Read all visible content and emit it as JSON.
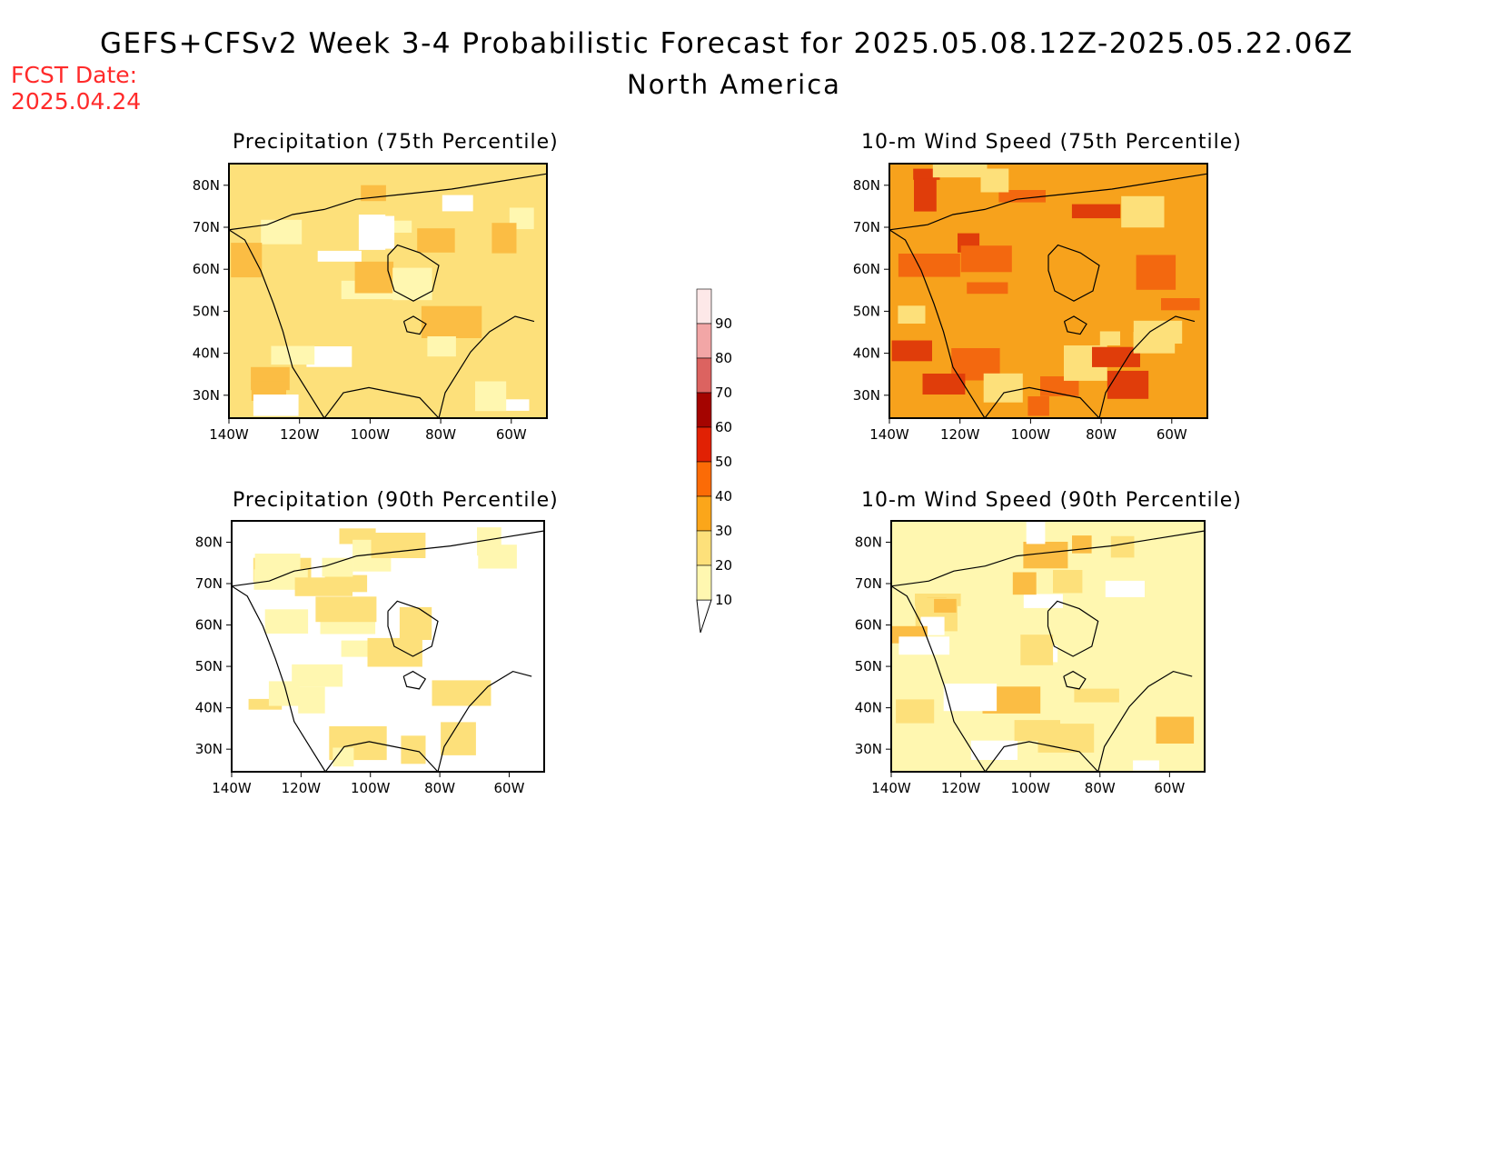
{
  "header": {
    "title": "GEFS+CFSv2 Week 3-4 Probabilistic Forecast for 2025.05.08.12Z-2025.05.22.06Z",
    "subtitle": "North America",
    "fcst_label": "FCST Date:",
    "fcst_date": "2025.04.24"
  },
  "panels": [
    {
      "title": "Precipitation (75th Percentile)",
      "base_color": "#fde07a",
      "patches": [
        "#fff7b0",
        "#fbbd44",
        "#ffffff"
      ]
    },
    {
      "title": "10-m Wind Speed (75th Percentile)",
      "base_color": "#f7a21c",
      "patches": [
        "#fde07a",
        "#f3680f",
        "#e03d0a"
      ]
    },
    {
      "title": "Precipitation (90th Percentile)",
      "base_color": "#ffffff",
      "patches": [
        "#fff7b0",
        "#fde07a"
      ]
    },
    {
      "title": "10-m Wind Speed (90th Percentile)",
      "base_color": "#fff7b0",
      "patches": [
        "#ffffff",
        "#fde07a",
        "#fbbd44"
      ]
    }
  ],
  "axes": {
    "lat_labels": [
      "80N",
      "70N",
      "60N",
      "50N",
      "40N",
      "30N"
    ],
    "lon_labels": [
      "140W",
      "120W",
      "100W",
      "80W",
      "60W"
    ]
  },
  "colorbar": {
    "levels": [
      "10",
      "20",
      "30",
      "40",
      "50",
      "60",
      "70",
      "80",
      "90"
    ],
    "colors": [
      "#fff7b0",
      "#fde07a",
      "#fba61a",
      "#fb6b06",
      "#e12104",
      "#a40400",
      "#dc6360",
      "#f2a6a6",
      "#fde8e8"
    ]
  }
}
